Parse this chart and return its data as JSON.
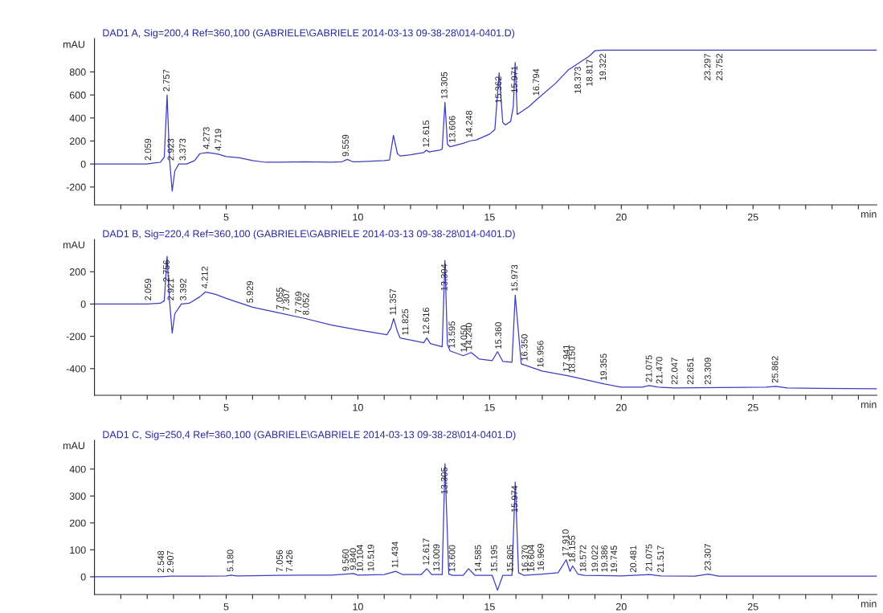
{
  "chart_data": [
    {
      "type": "line",
      "title": "DAD1 A, Sig=200,4 Ref=360,100 (GABRIELE\\GABRIELE 2014-03-13 09-38-28\\014-0401.D)",
      "xlabel": "min",
      "ylabel": "mAU",
      "legend": false,
      "grid": false,
      "marker": "none",
      "line_style": "solid",
      "xlim": [
        0,
        29.7
      ],
      "xticks": [
        {
          "value": 1,
          "label": null
        },
        {
          "value": 2,
          "label": null
        },
        {
          "value": 3,
          "label": null
        },
        {
          "value": 4,
          "label": null
        },
        5,
        {
          "value": 6,
          "label": null
        },
        {
          "value": 7,
          "label": null
        },
        {
          "value": 8,
          "label": null
        },
        {
          "value": 9,
          "label": null
        },
        10,
        {
          "value": 11,
          "label": null
        },
        {
          "value": 12,
          "label": null
        },
        {
          "value": 13,
          "label": null
        },
        {
          "value": 14,
          "label": null
        },
        15,
        {
          "value": 16,
          "label": null
        },
        {
          "value": 17,
          "label": null
        },
        {
          "value": 18,
          "label": null
        },
        {
          "value": 19,
          "label": null
        },
        20,
        {
          "value": 21,
          "label": null
        },
        {
          "value": 22,
          "label": null
        },
        {
          "value": 23,
          "label": null
        },
        {
          "value": 24,
          "label": null
        },
        25,
        {
          "value": 26,
          "label": null
        },
        {
          "value": 27,
          "label": null
        },
        {
          "value": 28,
          "label": null
        },
        {
          "value": 29,
          "label": null
        }
      ],
      "ylim": [
        -355,
        1090
      ],
      "yticks": [
        -200,
        0,
        200,
        400,
        600,
        800
      ],
      "series": [
        {
          "color": "#3c3cc0",
          "x": [
            0,
            2.0,
            2.3,
            2.5,
            2.65,
            2.757,
            2.85,
            2.95,
            3.05,
            3.2,
            3.5,
            3.8,
            4.0,
            4.3,
            4.7,
            5.0,
            5.5,
            6.0,
            6.5,
            7.0,
            8.0,
            9.0,
            9.4,
            9.6,
            9.8,
            10.0,
            10.5,
            11.0,
            11.2,
            11.35,
            11.5,
            11.6,
            12.0,
            12.5,
            12.6,
            12.7,
            13.1,
            13.2,
            13.305,
            13.4,
            13.5,
            14.0,
            14.25,
            14.5,
            15.0,
            15.2,
            15.362,
            15.5,
            15.6,
            15.8,
            15.9,
            15.971,
            16.05,
            16.5,
            16.8,
            17.5,
            18.0,
            18.373,
            18.8,
            19.0,
            19.3,
            20.0,
            25.0,
            29.7
          ],
          "values": [
            0,
            0,
            10,
            15,
            60,
            600,
            40,
            -235,
            -60,
            0,
            0,
            30,
            90,
            100,
            85,
            65,
            55,
            30,
            15,
            15,
            20,
            15,
            20,
            40,
            20,
            20,
            25,
            30,
            35,
            250,
            90,
            70,
            80,
            100,
            120,
            105,
            120,
            130,
            536,
            170,
            150,
            180,
            200,
            210,
            260,
            300,
            793,
            360,
            340,
            370,
            500,
            883,
            431,
            500,
            563,
            700,
            820,
            876,
            940,
            985,
            990,
            990,
            990,
            990
          ]
        }
      ],
      "annotations": [
        {
          "text": "2.059",
          "x": 2.059,
          "y": 0
        },
        {
          "text": "2.757",
          "x": 2.757,
          "y": 600
        },
        {
          "text": "2.923",
          "x": 2.923,
          "y": 0
        },
        {
          "text": "3.373",
          "x": 3.373,
          "y": 0
        },
        {
          "text": "4.273",
          "x": 4.273,
          "y": 100
        },
        {
          "text": "4.719",
          "x": 4.719,
          "y": 85
        },
        {
          "text": "9.559",
          "x": 9.559,
          "y": 35
        },
        {
          "text": "12.615",
          "x": 12.615,
          "y": 115
        },
        {
          "text": "13.305",
          "x": 13.305,
          "y": 536
        },
        {
          "text": "13.606",
          "x": 13.606,
          "y": 155
        },
        {
          "text": "14.248",
          "x": 14.248,
          "y": 200
        },
        {
          "text": "15.362",
          "x": 15.362,
          "y": 793
        },
        {
          "text": "15.971",
          "x": 15.971,
          "y": 883
        },
        {
          "text": "16.794",
          "x": 16.794,
          "y": 563
        },
        {
          "text": "18.373",
          "x": 18.373,
          "y": 876
        },
        {
          "text": "18.817",
          "x": 18.817,
          "y": 940
        },
        {
          "text": "19.322",
          "x": 19.322,
          "y": 990
        },
        {
          "text": "23.297",
          "x": 23.297,
          "y": 990
        },
        {
          "text": "23.752",
          "x": 23.752,
          "y": 990
        }
      ]
    },
    {
      "type": "line",
      "title": "DAD1 B, Sig=220,4 Ref=360,100 (GABRIELE\\GABRIELE 2014-03-13 09-38-28\\014-0401.D)",
      "xlabel": "min",
      "ylabel": "mAU",
      "legend": false,
      "grid": false,
      "marker": "none",
      "line_style": "solid",
      "xlim": [
        0,
        29.7
      ],
      "xticks": [
        {
          "value": 1,
          "label": null
        },
        {
          "value": 2,
          "label": null
        },
        {
          "value": 3,
          "label": null
        },
        {
          "value": 4,
          "label": null
        },
        5,
        {
          "value": 6,
          "label": null
        },
        {
          "value": 7,
          "label": null
        },
        {
          "value": 8,
          "label": null
        },
        {
          "value": 9,
          "label": null
        },
        10,
        {
          "value": 11,
          "label": null
        },
        {
          "value": 12,
          "label": null
        },
        {
          "value": 13,
          "label": null
        },
        {
          "value": 14,
          "label": null
        },
        15,
        {
          "value": 16,
          "label": null
        },
        {
          "value": 17,
          "label": null
        },
        {
          "value": 18,
          "label": null
        },
        {
          "value": 19,
          "label": null
        },
        20,
        {
          "value": 21,
          "label": null
        },
        {
          "value": 22,
          "label": null
        },
        {
          "value": 23,
          "label": null
        },
        {
          "value": 24,
          "label": null
        },
        25,
        {
          "value": 26,
          "label": null
        },
        {
          "value": 27,
          "label": null
        },
        {
          "value": 28,
          "label": null
        },
        {
          "value": 29,
          "label": null
        }
      ],
      "ylim": [
        -565,
        400
      ],
      "yticks": [
        -400,
        -200,
        0,
        200
      ],
      "series": [
        {
          "color": "#3c3cc0",
          "x": [
            0,
            2.0,
            2.5,
            2.65,
            2.756,
            2.85,
            2.95,
            3.05,
            3.3,
            3.6,
            4.0,
            4.212,
            4.6,
            5.0,
            6.0,
            7.0,
            8.0,
            9.0,
            10.0,
            11.1,
            11.25,
            11.357,
            11.5,
            11.6,
            12.5,
            12.616,
            12.75,
            13.2,
            13.304,
            13.4,
            13.5,
            14.0,
            14.3,
            14.6,
            15.1,
            15.3,
            15.5,
            15.85,
            15.973,
            16.2,
            17.0,
            18.0,
            19.355,
            20.0,
            20.8,
            21.05,
            21.4,
            22.0,
            25.5,
            25.862,
            26.3,
            29.7
          ],
          "values": [
            0,
            0,
            5,
            20,
            295,
            20,
            -180,
            -60,
            0,
            5,
            45,
            75,
            60,
            35,
            -20,
            -55,
            -90,
            -130,
            -160,
            -190,
            -150,
            -90,
            -170,
            -210,
            -240,
            -210,
            -245,
            -265,
            270,
            -250,
            -290,
            -320,
            -300,
            -340,
            -350,
            -295,
            -355,
            -360,
            55,
            -370,
            -415,
            -445,
            -495,
            -515,
            -515,
            -505,
            -515,
            -520,
            -515,
            -510,
            -520,
            -525
          ]
        }
      ],
      "annotations": [
        {
          "text": "2.059",
          "x": 2.059,
          "y": 0
        },
        {
          "text": "2.756",
          "x": 2.756,
          "y": 295
        },
        {
          "text": "2.921",
          "x": 2.921,
          "y": 0
        },
        {
          "text": "3.392",
          "x": 3.392,
          "y": 0
        },
        {
          "text": "4.212",
          "x": 4.212,
          "y": 75
        },
        {
          "text": "5.929",
          "x": 5.929,
          "y": -15
        },
        {
          "text": "7.055",
          "x": 7.055,
          "y": -55
        },
        {
          "text": "7.307",
          "x": 7.307,
          "y": -65
        },
        {
          "text": "7.769",
          "x": 7.769,
          "y": -80
        },
        {
          "text": "8.052",
          "x": 8.052,
          "y": -90
        },
        {
          "text": "11.357",
          "x": 11.357,
          "y": -90
        },
        {
          "text": "11.825",
          "x": 11.825,
          "y": -215
        },
        {
          "text": "12.616",
          "x": 12.616,
          "y": -210
        },
        {
          "text": "13.304",
          "x": 13.304,
          "y": 270
        },
        {
          "text": "13.595",
          "x": 13.595,
          "y": -295
        },
        {
          "text": "14.050",
          "x": 14.05,
          "y": -320
        },
        {
          "text": "14.240",
          "x": 14.24,
          "y": -305
        },
        {
          "text": "15.360",
          "x": 15.36,
          "y": -300
        },
        {
          "text": "15.973",
          "x": 15.973,
          "y": 55
        },
        {
          "text": "16.350",
          "x": 16.35,
          "y": -375
        },
        {
          "text": "16.956",
          "x": 16.956,
          "y": -415
        },
        {
          "text": "17.941",
          "x": 17.941,
          "y": -440
        },
        {
          "text": "18.150",
          "x": 18.15,
          "y": -450
        },
        {
          "text": "19.355",
          "x": 19.355,
          "y": -495
        },
        {
          "text": "21.075",
          "x": 21.075,
          "y": -505
        },
        {
          "text": "21.470",
          "x": 21.47,
          "y": -515
        },
        {
          "text": "22.047",
          "x": 22.047,
          "y": -520
        },
        {
          "text": "22.651",
          "x": 22.651,
          "y": -520
        },
        {
          "text": "23.309",
          "x": 23.309,
          "y": -520
        },
        {
          "text": "25.862",
          "x": 25.862,
          "y": -510
        }
      ]
    },
    {
      "type": "line",
      "title": "DAD1 C, Sig=250,4 Ref=360,100 (GABRIELE\\GABRIELE 2014-03-13 09-38-28\\014-0401.D)",
      "xlabel": "min",
      "ylabel": "mAU",
      "legend": false,
      "grid": false,
      "marker": "none",
      "line_style": "solid",
      "xlim": [
        0,
        29.7
      ],
      "xticks": [
        {
          "value": 1,
          "label": null
        },
        {
          "value": 2,
          "label": null
        },
        {
          "value": 3,
          "label": null
        },
        {
          "value": 4,
          "label": null
        },
        5,
        {
          "value": 6,
          "label": null
        },
        {
          "value": 7,
          "label": null
        },
        {
          "value": 8,
          "label": null
        },
        {
          "value": 9,
          "label": null
        },
        10,
        {
          "value": 11,
          "label": null
        },
        {
          "value": 12,
          "label": null
        },
        {
          "value": 13,
          "label": null
        },
        {
          "value": 14,
          "label": null
        },
        15,
        {
          "value": 16,
          "label": null
        },
        {
          "value": 17,
          "label": null
        },
        {
          "value": 18,
          "label": null
        },
        {
          "value": 19,
          "label": null
        },
        20,
        {
          "value": 21,
          "label": null
        },
        {
          "value": 22,
          "label": null
        },
        {
          "value": 23,
          "label": null
        },
        {
          "value": 24,
          "label": null
        },
        25,
        {
          "value": 26,
          "label": null
        },
        {
          "value": 27,
          "label": null
        },
        {
          "value": 28,
          "label": null
        },
        {
          "value": 29,
          "label": null
        }
      ],
      "ylim": [
        -66,
        507
      ],
      "yticks": [
        0,
        100,
        200,
        300,
        400
      ],
      "series": [
        {
          "color": "#3c3cc0",
          "x": [
            0,
            2.5,
            2.9,
            3.2,
            5.0,
            5.18,
            5.4,
            7.0,
            8.0,
            9.0,
            9.84,
            10.0,
            11.0,
            11.434,
            11.7,
            12.4,
            12.617,
            12.8,
            13.2,
            13.305,
            13.45,
            13.6,
            14.0,
            14.2,
            14.45,
            14.8,
            15.1,
            15.3,
            15.5,
            15.85,
            15.974,
            16.1,
            16.3,
            17.0,
            17.6,
            17.91,
            18.05,
            18.155,
            18.35,
            18.6,
            20.0,
            21.075,
            21.5,
            22.8,
            23.307,
            23.7,
            29.7
          ],
          "values": [
            0,
            0,
            2,
            2,
            3,
            6,
            3,
            5,
            6,
            6,
            12,
            6,
            8,
            20,
            8,
            8,
            30,
            8,
            8,
            420,
            10,
            5,
            5,
            30,
            5,
            5,
            5,
            -50,
            5,
            5,
            352,
            15,
            5,
            10,
            15,
            63,
            20,
            40,
            10,
            5,
            3,
            8,
            3,
            2,
            10,
            2,
            2
          ]
        }
      ],
      "annotations": [
        {
          "text": "2.548",
          "x": 2.548,
          "y": 2
        },
        {
          "text": "2.907",
          "x": 2.907,
          "y": 2
        },
        {
          "text": "5.180",
          "x": 5.18,
          "y": 6
        },
        {
          "text": "7.056",
          "x": 7.056,
          "y": 5
        },
        {
          "text": "7.426",
          "x": 7.426,
          "y": 5
        },
        {
          "text": "9.560",
          "x": 9.56,
          "y": 8
        },
        {
          "text": "9.840",
          "x": 9.84,
          "y": 12
        },
        {
          "text": "10.104",
          "x": 10.104,
          "y": 6
        },
        {
          "text": "10.519",
          "x": 10.519,
          "y": 7
        },
        {
          "text": "11.434",
          "x": 11.434,
          "y": 20
        },
        {
          "text": "12.617",
          "x": 12.617,
          "y": 30
        },
        {
          "text": "13.009",
          "x": 13.009,
          "y": 8
        },
        {
          "text": "13.305",
          "x": 13.305,
          "y": 420
        },
        {
          "text": "13.600",
          "x": 13.6,
          "y": 5
        },
        {
          "text": "14.585",
          "x": 14.585,
          "y": 5
        },
        {
          "text": "15.195",
          "x": 15.195,
          "y": 5
        },
        {
          "text": "15.805",
          "x": 15.805,
          "y": 5
        },
        {
          "text": "15.974",
          "x": 15.974,
          "y": 352
        },
        {
          "text": "16.370",
          "x": 16.37,
          "y": 5
        },
        {
          "text": "16.604",
          "x": 16.604,
          "y": 6
        },
        {
          "text": "16.969",
          "x": 16.969,
          "y": 10
        },
        {
          "text": "17.910",
          "x": 17.91,
          "y": 63
        },
        {
          "text": "18.155",
          "x": 18.155,
          "y": 40
        },
        {
          "text": "18.572",
          "x": 18.572,
          "y": 5
        },
        {
          "text": "19.022",
          "x": 19.022,
          "y": 4
        },
        {
          "text": "19.386",
          "x": 19.386,
          "y": 4
        },
        {
          "text": "19.745",
          "x": 19.745,
          "y": 3
        },
        {
          "text": "20.481",
          "x": 20.481,
          "y": 3
        },
        {
          "text": "21.075",
          "x": 21.075,
          "y": 8
        },
        {
          "text": "21.517",
          "x": 21.517,
          "y": 3
        },
        {
          "text": "23.307",
          "x": 23.307,
          "y": 10
        }
      ]
    }
  ]
}
